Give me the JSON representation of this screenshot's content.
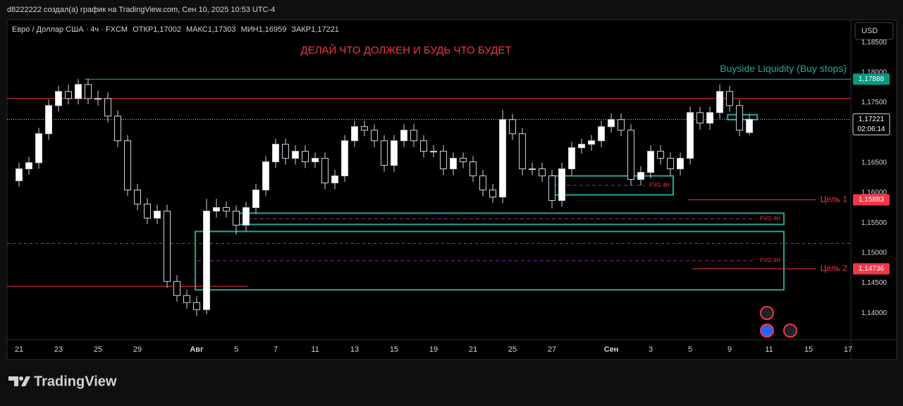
{
  "header": {
    "author_line": "d8222222 создал(а) график на TradingView.com, Сен 10, 2025 10:53 UTC-4",
    "currency": "USD",
    "footer": "TradingView"
  },
  "legend": {
    "symbol": "Евро / Доллар США · 4ч · FXCM",
    "open_label": "ОТКР",
    "open": "1,17002",
    "high_label": "МАКС",
    "high": "1,17303",
    "low_label": "МИН",
    "low": "1,16959",
    "close_label": "ЗАКР",
    "close": "1,17221"
  },
  "chart_data": {
    "type": "candlestick",
    "title": "ДЕЛАЙ ЧТО ДОЛЖЕН И БУДЬ ЧТО БУДЕТ",
    "up_color": "#ffffff",
    "down_color": "#000000",
    "wick_color": "#d1d4dc",
    "x": [
      0,
      0.5,
      1,
      1.5,
      2,
      2.5,
      3,
      3.5,
      4,
      4.5,
      5,
      5.5,
      6,
      6.5,
      7,
      7.5,
      8,
      8.5,
      9,
      9.5,
      10,
      10.5,
      11,
      11.5,
      12,
      12.5,
      13,
      13.5,
      14,
      14.5,
      15,
      15.5,
      16,
      16.5,
      17,
      17.5,
      18,
      18.5,
      19,
      19.5,
      20,
      20.5,
      21,
      21.5,
      22,
      22.5,
      23,
      23.5,
      24,
      24.5,
      25,
      25.5,
      26,
      26.5,
      27,
      27.5,
      28,
      28.5,
      29,
      29.5,
      30,
      30.5,
      31,
      31.5,
      32,
      32.5,
      33,
      33.5,
      34,
      34.5,
      35,
      35.5,
      36,
      36.5,
      37
    ],
    "open": [
      1.162,
      1.16398,
      1.165,
      1.16982,
      1.1745,
      1.17684,
      1.17567,
      1.17801,
      1.17567,
      1.17567,
      1.17275,
      1.16865,
      1.16047,
      1.15813,
      1.15579,
      1.15696,
      1.14526,
      1.14292,
      1.14175,
      1.14058,
      1.15696,
      1.15754,
      1.15696,
      1.15462,
      1.15754,
      1.16047,
      1.16515,
      1.16807,
      1.16573,
      1.1669,
      1.16515,
      1.16573,
      1.16164,
      1.16281,
      1.16865,
      1.17099,
      1.17041,
      1.16865,
      1.16456,
      1.16865,
      1.17041,
      1.16865,
      1.1669,
      1.1669,
      1.16398,
      1.16573,
      1.16515,
      1.16281,
      1.16047,
      1.1593,
      1.17216,
      1.16982,
      1.16398,
      1.16398,
      1.16281,
      1.15872,
      1.16398,
      1.16749,
      1.16807,
      1.16865,
      1.17099,
      1.17216,
      1.17041,
      1.16222,
      1.16339,
      1.1669,
      1.16573,
      1.16398,
      1.16573,
      1.17333,
      1.17158,
      1.17333,
      1.17684,
      1.1745,
      1.17002
    ],
    "high": [
      1.165,
      1.166,
      1.1708,
      1.1755,
      1.1778,
      1.178,
      1.1789,
      1.179,
      1.177,
      1.1767,
      1.1737,
      1.1696,
      1.1615,
      1.1591,
      1.158,
      1.158,
      1.1463,
      1.1439,
      1.1428,
      1.159,
      1.159,
      1.1585,
      1.1579,
      1.1585,
      1.1615,
      1.1661,
      1.169,
      1.169,
      1.1679,
      1.1679,
      1.1667,
      1.1667,
      1.1638,
      1.1696,
      1.172,
      1.172,
      1.1714,
      1.1696,
      1.1696,
      1.1714,
      1.1714,
      1.1696,
      1.1679,
      1.1679,
      1.1667,
      1.1667,
      1.1661,
      1.1638,
      1.1615,
      1.1738,
      1.1731,
      1.1708,
      1.165,
      1.165,
      1.1638,
      1.165,
      1.1685,
      1.169,
      1.1696,
      1.172,
      1.1732,
      1.1732,
      1.1714,
      1.1644,
      1.1679,
      1.1679,
      1.1667,
      1.1667,
      1.1743,
      1.1743,
      1.1743,
      1.178,
      1.1778,
      1.1755,
      1.17303
    ],
    "low": [
      1.161,
      1.163,
      1.164,
      1.1688,
      1.1735,
      1.1747,
      1.1747,
      1.1747,
      1.1745,
      1.1717,
      1.1676,
      1.1595,
      1.1571,
      1.1548,
      1.1548,
      1.1442,
      1.1419,
      1.1407,
      1.1395,
      1.1398,
      1.1559,
      1.1559,
      1.153,
      1.1536,
      1.1565,
      1.1595,
      1.1641,
      1.1647,
      1.1647,
      1.1641,
      1.1641,
      1.1606,
      1.1606,
      1.1618,
      1.1676,
      1.1694,
      1.1676,
      1.1635,
      1.1635,
      1.1676,
      1.1676,
      1.1659,
      1.1659,
      1.1629,
      1.1629,
      1.1641,
      1.1618,
      1.1594,
      1.1583,
      1.1583,
      1.1688,
      1.1629,
      1.1629,
      1.1618,
      1.1574,
      1.1577,
      1.1629,
      1.1665,
      1.167,
      1.1676,
      1.17,
      1.1694,
      1.1612,
      1.1612,
      1.1624,
      1.1647,
      1.1629,
      1.1629,
      1.1647,
      1.1705,
      1.1705,
      1.1723,
      1.1735,
      1.1694,
      1.16959
    ],
    "close": [
      1.16398,
      1.165,
      1.16982,
      1.1745,
      1.17684,
      1.17567,
      1.17801,
      1.17567,
      1.17567,
      1.17275,
      1.16865,
      1.16047,
      1.15813,
      1.15579,
      1.15696,
      1.14526,
      1.14292,
      1.14175,
      1.14058,
      1.15696,
      1.15754,
      1.15696,
      1.15462,
      1.15754,
      1.16047,
      1.16515,
      1.16807,
      1.16573,
      1.1669,
      1.16515,
      1.16573,
      1.16164,
      1.16281,
      1.16865,
      1.17099,
      1.17041,
      1.16865,
      1.16456,
      1.16865,
      1.17041,
      1.16865,
      1.1669,
      1.1669,
      1.16398,
      1.16573,
      1.16515,
      1.16281,
      1.16047,
      1.1593,
      1.17216,
      1.16982,
      1.16398,
      1.16398,
      1.16281,
      1.15872,
      1.16398,
      1.16749,
      1.16807,
      1.16865,
      1.17099,
      1.17216,
      1.17041,
      1.16222,
      1.16339,
      1.1669,
      1.16573,
      1.16398,
      1.16573,
      1.17333,
      1.17158,
      1.17333,
      1.17684,
      1.1745,
      1.17041,
      1.17221
    ],
    "xlim": [
      -0.607,
      42.14
    ],
    "xticks": [
      {
        "value": 0,
        "label": "21"
      },
      {
        "value": 2,
        "label": "23"
      },
      {
        "value": 4,
        "label": "25"
      },
      {
        "value": 6,
        "label": "29"
      },
      {
        "value": 9,
        "label": "Авг"
      },
      {
        "value": 11,
        "label": "5"
      },
      {
        "value": 13,
        "label": "7"
      },
      {
        "value": 15,
        "label": "11"
      },
      {
        "value": 17,
        "label": "13"
      },
      {
        "value": 19,
        "label": "15"
      },
      {
        "value": 21,
        "label": "19"
      },
      {
        "value": 23,
        "label": "21"
      },
      {
        "value": 25,
        "label": "25"
      },
      {
        "value": 27,
        "label": "27"
      },
      {
        "value": 30,
        "label": "Сен"
      },
      {
        "value": 32,
        "label": "3"
      },
      {
        "value": 34,
        "label": "5"
      },
      {
        "value": 36,
        "label": "9"
      },
      {
        "value": 38,
        "label": "11"
      },
      {
        "value": 40,
        "label": "15"
      },
      {
        "value": 42,
        "label": "17"
      }
    ],
    "ylim": [
      1.13557,
      1.18877
    ],
    "yticks": [
      {
        "value": 1.185,
        "label": "1,18500"
      },
      {
        "value": 1.18,
        "label": "1,18000"
      },
      {
        "value": 1.175,
        "label": "1,17500"
      },
      {
        "value": 1.165,
        "label": "1,16500"
      },
      {
        "value": 1.16,
        "label": "1,16000"
      },
      {
        "value": 1.155,
        "label": "1,15500"
      },
      {
        "value": 1.15,
        "label": "1,15000"
      },
      {
        "value": 1.145,
        "label": "1,14500"
      },
      {
        "value": 1.14,
        "label": "1,14000"
      }
    ],
    "grid": false,
    "levels": [
      {
        "value": 1.17888,
        "value_label": "1,17888",
        "label": "Buyside Liquidity (Buy stops)",
        "label_pos": "above",
        "color": "#26a69a",
        "from": 3.32
      },
      {
        "value": 1.17567,
        "color": "#f23645"
      },
      {
        "value": 1.17221,
        "value_label": "1,17221",
        "countdown": "02:06:14",
        "color": "#d1d4dc",
        "style": "dotted"
      },
      {
        "value": 1.15883,
        "value_label": "1,15883",
        "label": "Цель 1",
        "label_pos": "end",
        "color": "#f23645",
        "from": 33.9
      },
      {
        "value": 1.15158,
        "color": "#5d606b",
        "style": "dashed"
      },
      {
        "value": 1.14736,
        "value_label": "1,14736",
        "label": "Цель 2",
        "label_pos": "end",
        "color": "#f23645",
        "from": 34.1
      },
      {
        "value": 1.14444,
        "color": "#f23645",
        "to": 11.6
      }
    ],
    "zones": [
      {
        "label": "FVG 4H",
        "top": 1.16281,
        "bottom": 1.15965,
        "from": 27,
        "to": 33.14,
        "color": "#26a69a"
      },
      {
        "label": "FVG 4H",
        "top": 1.15661,
        "bottom": 1.15474,
        "from": 11.14,
        "to": 38.75,
        "color": "#26a69a"
      },
      {
        "label": "FVG 4H",
        "top": 1.15357,
        "bottom": 1.14386,
        "from": 8.93,
        "to": 38.75,
        "color": "#26a69a"
      },
      {
        "top": 1.17298,
        "bottom": 1.17216,
        "from": 35.9,
        "to": 37.4,
        "color": "#26a69a"
      }
    ]
  }
}
